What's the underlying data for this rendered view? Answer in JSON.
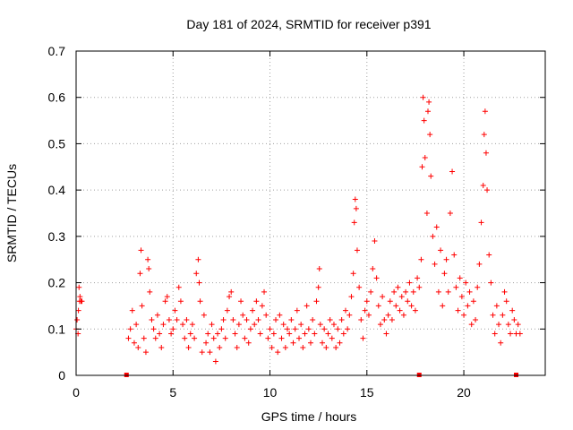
{
  "chart_data": {
    "type": "scatter",
    "title": "Day 181 of 2024, SRMTID for receiver p391",
    "xlabel": "GPS time / hours",
    "ylabel": "SRMTID / TECUs",
    "xlim": [
      0,
      24.2
    ],
    "ylim": [
      0,
      0.7
    ],
    "xticks": [
      0,
      5,
      10,
      15,
      20
    ],
    "yticks": [
      0,
      0.1,
      0.2,
      0.3,
      0.4,
      0.5,
      0.6,
      0.7
    ],
    "ytick_labels": [
      "0",
      "0.1",
      "0.2",
      "0.3",
      "0.4",
      "0.5",
      "0.6",
      "0.7"
    ],
    "grid": true,
    "marker": "plus",
    "series_color": "#ff0000",
    "series": [
      {
        "name": "SRMTID",
        "points": [
          [
            0.0,
            0.1
          ],
          [
            0.05,
            0.12
          ],
          [
            0.1,
            0.09
          ],
          [
            0.12,
            0.14
          ],
          [
            0.15,
            0.19
          ],
          [
            0.18,
            0.16
          ],
          [
            0.2,
            0.17
          ],
          [
            0.25,
            0.16
          ],
          [
            0.3,
            0.16
          ],
          [
            2.7,
            0.08
          ],
          [
            2.8,
            0.1
          ],
          [
            2.9,
            0.14
          ],
          [
            3.0,
            0.07
          ],
          [
            3.1,
            0.11
          ],
          [
            3.2,
            0.06
          ],
          [
            3.3,
            0.22
          ],
          [
            3.35,
            0.27
          ],
          [
            3.4,
            0.15
          ],
          [
            3.5,
            0.08
          ],
          [
            3.6,
            0.05
          ],
          [
            3.7,
            0.25
          ],
          [
            3.75,
            0.23
          ],
          [
            3.8,
            0.18
          ],
          [
            3.9,
            0.12
          ],
          [
            4.0,
            0.1
          ],
          [
            4.1,
            0.08
          ],
          [
            4.2,
            0.13
          ],
          [
            4.3,
            0.09
          ],
          [
            4.4,
            0.06
          ],
          [
            4.5,
            0.11
          ],
          [
            4.6,
            0.16
          ],
          [
            4.7,
            0.17
          ],
          [
            4.8,
            0.12
          ],
          [
            4.9,
            0.09
          ],
          [
            5.0,
            0.1
          ],
          [
            5.1,
            0.14
          ],
          [
            5.2,
            0.12
          ],
          [
            5.3,
            0.19
          ],
          [
            5.4,
            0.16
          ],
          [
            5.5,
            0.11
          ],
          [
            5.6,
            0.08
          ],
          [
            5.7,
            0.12
          ],
          [
            5.8,
            0.06
          ],
          [
            5.9,
            0.09
          ],
          [
            6.0,
            0.11
          ],
          [
            6.1,
            0.08
          ],
          [
            6.2,
            0.22
          ],
          [
            6.3,
            0.25
          ],
          [
            6.35,
            0.2
          ],
          [
            6.4,
            0.16
          ],
          [
            6.5,
            0.05
          ],
          [
            6.6,
            0.13
          ],
          [
            6.7,
            0.07
          ],
          [
            6.8,
            0.09
          ],
          [
            6.9,
            0.05
          ],
          [
            7.0,
            0.11
          ],
          [
            7.1,
            0.08
          ],
          [
            7.2,
            0.03
          ],
          [
            7.3,
            0.09
          ],
          [
            7.4,
            0.06
          ],
          [
            7.5,
            0.1
          ],
          [
            7.6,
            0.12
          ],
          [
            7.7,
            0.08
          ],
          [
            7.8,
            0.14
          ],
          [
            7.9,
            0.17
          ],
          [
            8.0,
            0.18
          ],
          [
            8.1,
            0.12
          ],
          [
            8.2,
            0.09
          ],
          [
            8.3,
            0.06
          ],
          [
            8.4,
            0.11
          ],
          [
            8.5,
            0.16
          ],
          [
            8.6,
            0.13
          ],
          [
            8.7,
            0.08
          ],
          [
            8.8,
            0.12
          ],
          [
            8.9,
            0.07
          ],
          [
            9.0,
            0.1
          ],
          [
            9.1,
            0.14
          ],
          [
            9.2,
            0.11
          ],
          [
            9.3,
            0.16
          ],
          [
            9.4,
            0.12
          ],
          [
            9.5,
            0.09
          ],
          [
            9.6,
            0.15
          ],
          [
            9.7,
            0.18
          ],
          [
            9.8,
            0.13
          ],
          [
            9.9,
            0.08
          ],
          [
            10.0,
            0.1
          ],
          [
            10.1,
            0.06
          ],
          [
            10.2,
            0.09
          ],
          [
            10.3,
            0.12
          ],
          [
            10.4,
            0.05
          ],
          [
            10.5,
            0.13
          ],
          [
            10.6,
            0.08
          ],
          [
            10.7,
            0.11
          ],
          [
            10.8,
            0.06
          ],
          [
            10.9,
            0.1
          ],
          [
            11.0,
            0.09
          ],
          [
            11.1,
            0.12
          ],
          [
            11.2,
            0.07
          ],
          [
            11.3,
            0.1
          ],
          [
            11.4,
            0.14
          ],
          [
            11.5,
            0.08
          ],
          [
            11.6,
            0.11
          ],
          [
            11.7,
            0.06
          ],
          [
            11.8,
            0.09
          ],
          [
            11.9,
            0.15
          ],
          [
            12.0,
            0.1
          ],
          [
            12.1,
            0.07
          ],
          [
            12.2,
            0.12
          ],
          [
            12.3,
            0.09
          ],
          [
            12.4,
            0.16
          ],
          [
            12.5,
            0.19
          ],
          [
            12.55,
            0.23
          ],
          [
            12.6,
            0.11
          ],
          [
            12.7,
            0.07
          ],
          [
            12.8,
            0.1
          ],
          [
            12.9,
            0.06
          ],
          [
            13.0,
            0.09
          ],
          [
            13.1,
            0.12
          ],
          [
            13.2,
            0.08
          ],
          [
            13.3,
            0.11
          ],
          [
            13.4,
            0.06
          ],
          [
            13.5,
            0.1
          ],
          [
            13.6,
            0.07
          ],
          [
            13.7,
            0.12
          ],
          [
            13.8,
            0.09
          ],
          [
            13.9,
            0.14
          ],
          [
            14.0,
            0.1
          ],
          [
            14.1,
            0.13
          ],
          [
            14.2,
            0.17
          ],
          [
            14.3,
            0.22
          ],
          [
            14.35,
            0.33
          ],
          [
            14.4,
            0.38
          ],
          [
            14.45,
            0.36
          ],
          [
            14.5,
            0.27
          ],
          [
            14.6,
            0.19
          ],
          [
            14.7,
            0.12
          ],
          [
            14.8,
            0.08
          ],
          [
            14.9,
            0.14
          ],
          [
            15.0,
            0.16
          ],
          [
            15.1,
            0.13
          ],
          [
            15.2,
            0.18
          ],
          [
            15.3,
            0.23
          ],
          [
            15.4,
            0.29
          ],
          [
            15.5,
            0.21
          ],
          [
            15.6,
            0.15
          ],
          [
            15.7,
            0.11
          ],
          [
            15.8,
            0.17
          ],
          [
            15.9,
            0.12
          ],
          [
            16.0,
            0.09
          ],
          [
            16.1,
            0.13
          ],
          [
            16.2,
            0.16
          ],
          [
            16.3,
            0.12
          ],
          [
            16.4,
            0.18
          ],
          [
            16.5,
            0.15
          ],
          [
            16.6,
            0.19
          ],
          [
            16.7,
            0.14
          ],
          [
            16.8,
            0.17
          ],
          [
            16.9,
            0.13
          ],
          [
            17.0,
            0.18
          ],
          [
            17.1,
            0.16
          ],
          [
            17.2,
            0.2
          ],
          [
            17.3,
            0.15
          ],
          [
            17.4,
            0.18
          ],
          [
            17.5,
            0.14
          ],
          [
            17.6,
            0.21
          ],
          [
            17.7,
            0.19
          ],
          [
            17.8,
            0.25
          ],
          [
            17.85,
            0.45
          ],
          [
            17.9,
            0.6
          ],
          [
            17.95,
            0.55
          ],
          [
            18.0,
            0.47
          ],
          [
            18.1,
            0.35
          ],
          [
            18.15,
            0.57
          ],
          [
            18.2,
            0.59
          ],
          [
            18.25,
            0.52
          ],
          [
            18.3,
            0.43
          ],
          [
            18.4,
            0.3
          ],
          [
            18.5,
            0.24
          ],
          [
            18.6,
            0.32
          ],
          [
            18.7,
            0.18
          ],
          [
            18.8,
            0.27
          ],
          [
            18.9,
            0.15
          ],
          [
            19.0,
            0.22
          ],
          [
            19.1,
            0.25
          ],
          [
            19.2,
            0.18
          ],
          [
            19.3,
            0.35
          ],
          [
            19.4,
            0.44
          ],
          [
            19.5,
            0.26
          ],
          [
            19.6,
            0.19
          ],
          [
            19.7,
            0.14
          ],
          [
            19.8,
            0.21
          ],
          [
            19.9,
            0.17
          ],
          [
            20.0,
            0.13
          ],
          [
            20.1,
            0.2
          ],
          [
            20.2,
            0.15
          ],
          [
            20.3,
            0.18
          ],
          [
            20.4,
            0.11
          ],
          [
            20.5,
            0.16
          ],
          [
            20.6,
            0.12
          ],
          [
            20.7,
            0.19
          ],
          [
            20.8,
            0.24
          ],
          [
            20.9,
            0.33
          ],
          [
            21.0,
            0.41
          ],
          [
            21.05,
            0.52
          ],
          [
            21.1,
            0.57
          ],
          [
            21.15,
            0.48
          ],
          [
            21.2,
            0.4
          ],
          [
            21.3,
            0.26
          ],
          [
            21.4,
            0.2
          ],
          [
            21.5,
            0.13
          ],
          [
            21.6,
            0.09
          ],
          [
            21.7,
            0.15
          ],
          [
            21.8,
            0.11
          ],
          [
            21.9,
            0.07
          ],
          [
            22.0,
            0.13
          ],
          [
            22.1,
            0.18
          ],
          [
            22.2,
            0.16
          ],
          [
            22.3,
            0.11
          ],
          [
            22.4,
            0.09
          ],
          [
            22.5,
            0.14
          ],
          [
            22.6,
            0.12
          ],
          [
            22.7,
            0.09
          ],
          [
            22.8,
            0.11
          ],
          [
            22.9,
            0.09
          ]
        ]
      }
    ],
    "baseline_markers_x": [
      2.6,
      17.7,
      22.7
    ]
  }
}
